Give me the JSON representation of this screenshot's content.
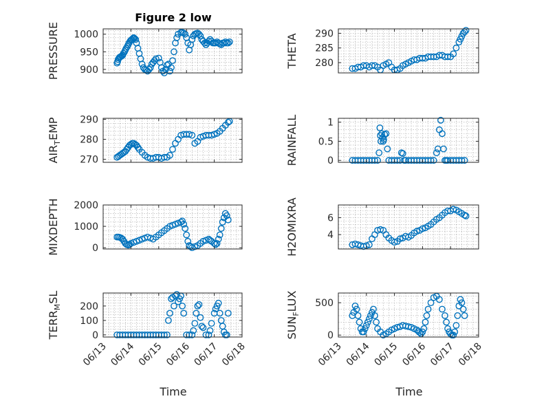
{
  "figure": {
    "title": "Figure 2 low",
    "xlabel": "Time"
  },
  "colors": {
    "marker": "#0072BD",
    "axis": "#262626",
    "grid": "#a6a6a6"
  },
  "x_ticks": [
    "06/13",
    "06/14",
    "06/15",
    "06/16",
    "06/17",
    "06/18"
  ],
  "chart_data": [
    {
      "type": "scatter",
      "ylabel": "PRESSURE",
      "ylim": [
        890,
        1015
      ],
      "yticks": [
        900,
        950,
        1000
      ],
      "xlim": [
        0,
        5
      ],
      "grid": true,
      "x": [
        0.5,
        0.52,
        0.54,
        0.57,
        0.6,
        0.63,
        0.67,
        0.7,
        0.73,
        0.77,
        0.8,
        0.83,
        0.87,
        0.9,
        0.93,
        0.97,
        1.0,
        1.03,
        1.07,
        1.1,
        1.13,
        1.17,
        1.2,
        1.25,
        1.3,
        1.35,
        1.4,
        1.45,
        1.5,
        1.55,
        1.6,
        1.65,
        1.7,
        1.75,
        1.8,
        1.85,
        1.9,
        2.0,
        2.05,
        2.1,
        2.15,
        2.2,
        2.25,
        2.3,
        2.35,
        2.4,
        2.45,
        2.5,
        2.55,
        2.6,
        2.65,
        2.7,
        2.8,
        2.85,
        2.9,
        2.95,
        3.0,
        3.05,
        3.1,
        3.15,
        3.2,
        3.25,
        3.3,
        3.35,
        3.4,
        3.45,
        3.5,
        3.55,
        3.6,
        3.65,
        3.7,
        3.75,
        3.8,
        3.85,
        3.9,
        3.95,
        4.0,
        4.05,
        4.1,
        4.15,
        4.2,
        4.25,
        4.3,
        4.35,
        4.4,
        4.45,
        4.5,
        4.55
      ],
      "y": [
        918,
        922,
        928,
        932,
        935,
        936,
        938,
        940,
        945,
        950,
        955,
        960,
        965,
        970,
        975,
        980,
        983,
        985,
        988,
        990,
        988,
        985,
        975,
        960,
        945,
        930,
        915,
        905,
        900,
        898,
        895,
        900,
        905,
        915,
        920,
        925,
        930,
        932,
        920,
        905,
        895,
        890,
        900,
        912,
        915,
        895,
        905,
        925,
        950,
        975,
        990,
        1000,
        1005,
        1005,
        1003,
        1000,
        990,
        975,
        955,
        970,
        985,
        995,
        1000,
        1002,
        1003,
        1000,
        995,
        985,
        980,
        975,
        970,
        975,
        980,
        985,
        980,
        975,
        975,
        975,
        978,
        975,
        972,
        970,
        975,
        975,
        978,
        975,
        975,
        978
      ]
    },
    {
      "type": "scatter",
      "ylabel": "THETA",
      "ylim": [
        276.5,
        291.5
      ],
      "yticks": [
        280,
        285,
        290
      ],
      "xlim": [
        0,
        5
      ],
      "grid": true,
      "x": [
        0.5,
        0.6,
        0.7,
        0.8,
        0.9,
        1.0,
        1.1,
        1.2,
        1.3,
        1.4,
        1.5,
        1.6,
        1.7,
        1.8,
        1.9,
        2.0,
        2.1,
        2.2,
        2.3,
        2.4,
        2.5,
        2.6,
        2.7,
        2.8,
        2.9,
        3.0,
        3.1,
        3.2,
        3.3,
        3.4,
        3.5,
        3.6,
        3.7,
        3.8,
        3.9,
        4.0,
        4.1,
        4.2,
        4.3,
        4.35,
        4.4,
        4.45,
        4.5,
        4.55
      ],
      "y": [
        278,
        278,
        278.5,
        278.5,
        279,
        279,
        278.5,
        279,
        279,
        278.5,
        277.5,
        279,
        279.5,
        280,
        278.5,
        277.5,
        277.5,
        278,
        279,
        279.5,
        280,
        280.5,
        281,
        281,
        281.5,
        281.5,
        281.5,
        282,
        282,
        282,
        282,
        282.5,
        282.5,
        282,
        282,
        282,
        283,
        285,
        287,
        288,
        289,
        290,
        290.5,
        291
      ]
    },
    {
      "type": "scatter",
      "ylabel": "AIR_TEMP",
      "ylim": [
        268.5,
        290.5
      ],
      "yticks": [
        270,
        280,
        290
      ],
      "xlim": [
        0,
        5
      ],
      "grid": true,
      "x": [
        0.5,
        0.55,
        0.6,
        0.65,
        0.7,
        0.75,
        0.8,
        0.85,
        0.9,
        0.95,
        1.0,
        1.05,
        1.1,
        1.15,
        1.2,
        1.25,
        1.3,
        1.4,
        1.5,
        1.6,
        1.7,
        1.8,
        1.9,
        2.0,
        2.1,
        2.2,
        2.3,
        2.4,
        2.5,
        2.6,
        2.7,
        2.8,
        2.9,
        3.0,
        3.1,
        3.2,
        3.3,
        3.4,
        3.5,
        3.6,
        3.7,
        3.8,
        3.9,
        4.0,
        4.1,
        4.2,
        4.3,
        4.4,
        4.5,
        4.55
      ],
      "y": [
        271,
        271.5,
        272,
        272.5,
        273,
        273.5,
        274,
        275,
        276,
        277,
        277.5,
        278,
        278,
        277.5,
        277,
        276,
        275,
        273.5,
        272,
        271,
        270.5,
        270.5,
        271,
        271,
        270.5,
        271,
        271,
        272,
        275,
        278,
        280,
        282,
        282.5,
        282.5,
        282.5,
        282,
        278,
        279,
        281,
        281.5,
        282,
        282,
        282,
        282.5,
        283,
        284,
        285.5,
        287,
        288.5,
        289
      ]
    },
    {
      "type": "scatter",
      "ylabel": "RAINFALL",
      "ylim": [
        -0.05,
        1.1
      ],
      "yticks": [
        0,
        0.5,
        1
      ],
      "xlim": [
        0,
        5
      ],
      "grid": true,
      "x": [
        0.5,
        0.6,
        0.7,
        0.8,
        0.9,
        1.0,
        1.1,
        1.2,
        1.3,
        1.4,
        1.45,
        1.48,
        1.5,
        1.52,
        1.55,
        1.58,
        1.6,
        1.62,
        1.65,
        1.7,
        1.75,
        1.8,
        1.9,
        2.0,
        2.1,
        2.2,
        2.25,
        2.3,
        2.35,
        2.4,
        2.5,
        2.6,
        2.7,
        2.8,
        2.9,
        3.0,
        3.1,
        3.2,
        3.3,
        3.4,
        3.5,
        3.55,
        3.6,
        3.65,
        3.7,
        3.75,
        3.8,
        3.85,
        3.9,
        4.0,
        4.1,
        4.2,
        4.3,
        4.4,
        4.5
      ],
      "y": [
        0,
        0,
        0,
        0,
        0,
        0,
        0,
        0,
        0,
        0,
        0.2,
        0.85,
        0.65,
        0.5,
        0.7,
        0.6,
        0.5,
        0.55,
        0.68,
        0.7,
        0.3,
        0,
        0,
        0,
        0,
        0,
        0.2,
        0.18,
        0,
        0,
        0,
        0,
        0,
        0,
        0,
        0,
        0,
        0,
        0,
        0,
        0.2,
        0.3,
        0.8,
        1.05,
        0.7,
        0.3,
        0,
        0,
        0,
        0,
        0,
        0,
        0,
        0,
        0
      ]
    },
    {
      "type": "scatter",
      "ylabel": "MIXDEPTH",
      "ylim": [
        -60,
        2000
      ],
      "yticks": [
        0,
        1000,
        2000
      ],
      "xlim": [
        0,
        5
      ],
      "grid": true,
      "x": [
        0.5,
        0.55,
        0.6,
        0.65,
        0.7,
        0.75,
        0.8,
        0.85,
        0.9,
        0.95,
        1.0,
        1.1,
        1.2,
        1.3,
        1.4,
        1.5,
        1.6,
        1.7,
        1.8,
        1.9,
        2.0,
        2.1,
        2.2,
        2.3,
        2.4,
        2.5,
        2.6,
        2.7,
        2.8,
        2.85,
        2.9,
        2.95,
        3.0,
        3.05,
        3.1,
        3.15,
        3.2,
        3.3,
        3.4,
        3.5,
        3.6,
        3.7,
        3.8,
        3.85,
        3.9,
        4.0,
        4.05,
        4.1,
        4.15,
        4.2,
        4.25,
        4.3,
        4.35,
        4.4,
        4.45,
        4.5
      ],
      "y": [
        500,
        500,
        480,
        450,
        400,
        300,
        200,
        150,
        120,
        150,
        200,
        250,
        300,
        350,
        400,
        450,
        500,
        450,
        400,
        500,
        600,
        700,
        800,
        900,
        1000,
        1050,
        1100,
        1150,
        1200,
        1250,
        1100,
        900,
        600,
        300,
        100,
        50,
        0,
        50,
        100,
        200,
        300,
        350,
        400,
        350,
        300,
        200,
        150,
        200,
        400,
        600,
        900,
        1200,
        1400,
        1600,
        1500,
        1300
      ]
    },
    {
      "type": "scatter",
      "ylabel": "H2OMIXRA",
      "ylim": [
        2.3,
        7.5
      ],
      "yticks": [
        4,
        6
      ],
      "xlim": [
        0,
        5
      ],
      "grid": true,
      "x": [
        0.5,
        0.6,
        0.7,
        0.8,
        0.9,
        1.0,
        1.1,
        1.2,
        1.3,
        1.4,
        1.5,
        1.6,
        1.7,
        1.8,
        1.9,
        2.0,
        2.1,
        2.2,
        2.3,
        2.4,
        2.5,
        2.6,
        2.7,
        2.8,
        2.9,
        3.0,
        3.1,
        3.2,
        3.3,
        3.4,
        3.5,
        3.6,
        3.7,
        3.8,
        3.9,
        4.0,
        4.1,
        4.2,
        4.3,
        4.4,
        4.5,
        4.55
      ],
      "y": [
        2.8,
        2.9,
        2.8,
        2.7,
        2.6,
        2.7,
        2.8,
        3.5,
        4.0,
        4.5,
        4.6,
        4.5,
        4.0,
        3.6,
        3.3,
        3.1,
        3.2,
        3.5,
        3.6,
        3.8,
        3.7,
        3.9,
        4.2,
        4.4,
        4.5,
        4.7,
        4.8,
        5.0,
        5.2,
        5.5,
        5.8,
        6.0,
        6.3,
        6.6,
        6.8,
        6.8,
        7.0,
        6.9,
        6.7,
        6.5,
        6.3,
        6.2
      ]
    },
    {
      "type": "scatter",
      "ylabel": "TERR_MSL",
      "ylim": [
        -15,
        290
      ],
      "yticks": [
        0,
        100,
        200
      ],
      "xlim": [
        0,
        5
      ],
      "grid": true,
      "x": [
        0.5,
        0.6,
        0.7,
        0.8,
        0.9,
        1.0,
        1.1,
        1.2,
        1.3,
        1.4,
        1.5,
        1.6,
        1.7,
        1.8,
        1.9,
        2.0,
        2.1,
        2.2,
        2.3,
        2.35,
        2.4,
        2.45,
        2.5,
        2.55,
        2.6,
        2.65,
        2.7,
        2.75,
        2.8,
        2.85,
        2.9,
        3.0,
        3.1,
        3.2,
        3.25,
        3.3,
        3.35,
        3.4,
        3.45,
        3.5,
        3.55,
        3.6,
        3.7,
        3.8,
        3.85,
        3.9,
        4.0,
        4.05,
        4.1,
        4.15,
        4.2,
        4.25,
        4.3,
        4.35,
        4.4,
        4.45,
        4.5
      ],
      "y": [
        0,
        0,
        0,
        0,
        0,
        0,
        0,
        0,
        0,
        0,
        0,
        0,
        0,
        0,
        0,
        0,
        0,
        0,
        0,
        100,
        150,
        250,
        260,
        200,
        270,
        280,
        230,
        250,
        270,
        200,
        150,
        0,
        0,
        0,
        30,
        80,
        150,
        200,
        210,
        120,
        60,
        50,
        0,
        0,
        30,
        80,
        150,
        180,
        200,
        220,
        150,
        100,
        60,
        20,
        0,
        0,
        150
      ]
    },
    {
      "type": "scatter",
      "ylabel": "SUN_FLUX",
      "ylim": [
        -30,
        650
      ],
      "yticks": [
        0,
        500
      ],
      "xlim": [
        0,
        5
      ],
      "grid": true,
      "x": [
        0.5,
        0.55,
        0.6,
        0.65,
        0.7,
        0.75,
        0.8,
        0.85,
        0.9,
        0.95,
        1.0,
        1.05,
        1.1,
        1.15,
        1.2,
        1.25,
        1.3,
        1.35,
        1.4,
        1.5,
        1.6,
        1.7,
        1.8,
        1.9,
        2.0,
        2.1,
        2.2,
        2.3,
        2.4,
        2.5,
        2.6,
        2.7,
        2.8,
        2.85,
        2.9,
        2.95,
        3.0,
        3.05,
        3.1,
        3.15,
        3.2,
        3.3,
        3.4,
        3.5,
        3.6,
        3.7,
        3.8,
        3.85,
        3.9,
        3.95,
        4.0,
        4.05,
        4.1,
        4.15,
        4.2,
        4.25,
        4.3,
        4.35,
        4.4,
        4.45,
        4.5
      ],
      "y": [
        300,
        350,
        450,
        400,
        300,
        200,
        100,
        50,
        50,
        100,
        150,
        200,
        250,
        300,
        350,
        400,
        300,
        200,
        100,
        50,
        0,
        20,
        50,
        80,
        100,
        120,
        130,
        150,
        140,
        130,
        120,
        100,
        80,
        60,
        40,
        20,
        50,
        100,
        200,
        300,
        400,
        500,
        580,
        600,
        550,
        400,
        300,
        200,
        100,
        50,
        20,
        0,
        0,
        50,
        150,
        300,
        450,
        550,
        500,
        400,
        300
      ]
    }
  ]
}
